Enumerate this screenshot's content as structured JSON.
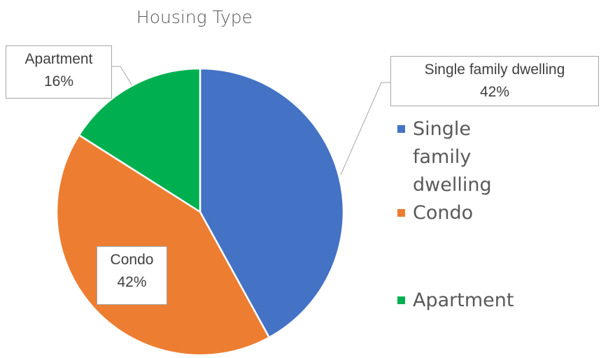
{
  "chart_data": {
    "type": "pie",
    "title": "Housing Type",
    "categories": [
      "Single family dwelling",
      "Condo",
      "Apartment"
    ],
    "values": [
      42,
      42,
      16
    ],
    "value_labels": [
      "42%",
      "42%",
      "16%"
    ],
    "colors": [
      "#4472c4",
      "#ed7d31",
      "#00b050"
    ]
  }
}
